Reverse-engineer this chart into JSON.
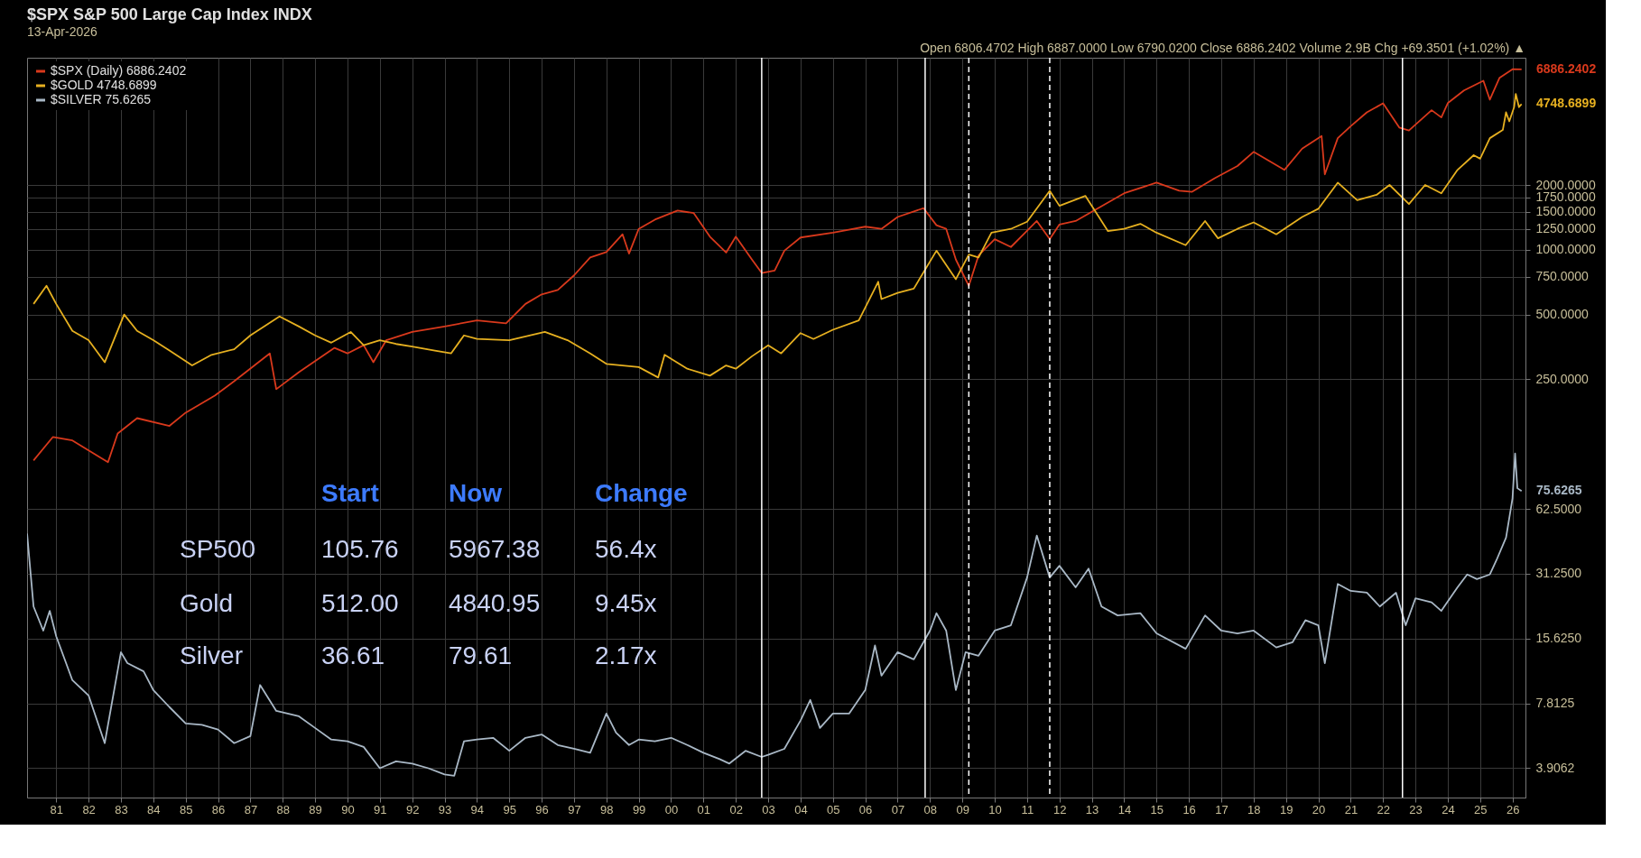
{
  "chart_data": {
    "type": "line",
    "title": "$SPX S&P 500 Large Cap Index INDX",
    "subtitle": "13-Apr-2026",
    "log": "y",
    "grid": true,
    "legend": "top left",
    "xlim": [
      1980.1,
      2026.4
    ],
    "xticks": [
      {
        "value": 1981,
        "label": "81"
      },
      {
        "value": 1982,
        "label": "82"
      },
      {
        "value": 1983,
        "label": "83"
      },
      {
        "value": 1984,
        "label": "84"
      },
      {
        "value": 1985,
        "label": "85"
      },
      {
        "value": 1986,
        "label": "86"
      },
      {
        "value": 1987,
        "label": "87"
      },
      {
        "value": 1988,
        "label": "88"
      },
      {
        "value": 1989,
        "label": "89"
      },
      {
        "value": 1990,
        "label": "90"
      },
      {
        "value": 1991,
        "label": "91"
      },
      {
        "value": 1992,
        "label": "92"
      },
      {
        "value": 1993,
        "label": "93"
      },
      {
        "value": 1994,
        "label": "94"
      },
      {
        "value": 1995,
        "label": "95"
      },
      {
        "value": 1996,
        "label": "96"
      },
      {
        "value": 1997,
        "label": "97"
      },
      {
        "value": 1998,
        "label": "98"
      },
      {
        "value": 1999,
        "label": "99"
      },
      {
        "value": 2000,
        "label": "00"
      },
      {
        "value": 2001,
        "label": "01"
      },
      {
        "value": 2002,
        "label": "02"
      },
      {
        "value": 2003,
        "label": "03"
      },
      {
        "value": 2004,
        "label": "04"
      },
      {
        "value": 2005,
        "label": "05"
      },
      {
        "value": 2006,
        "label": "06"
      },
      {
        "value": 2007,
        "label": "07"
      },
      {
        "value": 2008,
        "label": "08"
      },
      {
        "value": 2009,
        "label": "09"
      },
      {
        "value": 2010,
        "label": "10"
      },
      {
        "value": 2011,
        "label": "11"
      },
      {
        "value": 2012,
        "label": "12"
      },
      {
        "value": 2013,
        "label": "13"
      },
      {
        "value": 2014,
        "label": "14"
      },
      {
        "value": 2015,
        "label": "15"
      },
      {
        "value": 2016,
        "label": "16"
      },
      {
        "value": 2017,
        "label": "17"
      },
      {
        "value": 2018,
        "label": "18"
      },
      {
        "value": 2019,
        "label": "19"
      },
      {
        "value": 2020,
        "label": "20"
      },
      {
        "value": 2021,
        "label": "21"
      },
      {
        "value": 2022,
        "label": "22"
      },
      {
        "value": 2023,
        "label": "23"
      },
      {
        "value": 2024,
        "label": "24"
      },
      {
        "value": 2025,
        "label": "25"
      },
      {
        "value": 2026,
        "label": "26"
      }
    ],
    "ylim": [
      2.85,
      7800
    ],
    "yticks": [
      {
        "value": 3.9062,
        "label": "3.9062"
      },
      {
        "value": 7.8125,
        "label": "7.8125"
      },
      {
        "value": 15.625,
        "label": "15.6250"
      },
      {
        "value": 31.25,
        "label": "31.2500"
      },
      {
        "value": 62.5,
        "label": "62.5000"
      },
      {
        "value": 250,
        "label": "250.0000"
      },
      {
        "value": 500,
        "label": "500.0000"
      },
      {
        "value": 750,
        "label": "750.0000"
      },
      {
        "value": 1000,
        "label": "1000.0000"
      },
      {
        "value": 1250,
        "label": "1250.0000"
      },
      {
        "value": 1500,
        "label": "1500.0000"
      },
      {
        "value": 1750,
        "label": "1750.0000"
      },
      {
        "value": 2000,
        "label": "2000.0000"
      }
    ],
    "series": [
      {
        "name": "$SPX (Daily) 6886.2402",
        "color": "#d9391c",
        "x": [
          1980.3,
          1980.9,
          1981.5,
          1982.6,
          1982.9,
          1983.5,
          1984.5,
          1985.0,
          1985.9,
          1986.5,
          1987.6,
          1987.8,
          1988.5,
          1989.6,
          1990.0,
          1990.5,
          1990.8,
          1991.2,
          1992.0,
          1993.0,
          1994.0,
          1994.9,
          1995.5,
          1996.0,
          1996.5,
          1997.0,
          1997.5,
          1998.0,
          1998.5,
          1998.7,
          1999.0,
          1999.5,
          2000.2,
          2000.7,
          2001.2,
          2001.7,
          2002.0,
          2002.5,
          2002.8,
          2003.2,
          2003.5,
          2004.0,
          2005.0,
          2006.0,
          2006.5,
          2007.0,
          2007.8,
          2008.2,
          2008.5,
          2008.8,
          2009.2,
          2009.5,
          2010.0,
          2010.5,
          2011.3,
          2011.7,
          2012.0,
          2012.5,
          2013.0,
          2014.0,
          2015.0,
          2015.7,
          2016.1,
          2016.8,
          2017.5,
          2018.0,
          2018.95,
          2019.5,
          2020.1,
          2020.2,
          2020.6,
          2021.0,
          2021.5,
          2022.0,
          2022.5,
          2022.8,
          2023.5,
          2023.8,
          2024.0,
          2024.5,
          2025.1,
          2025.3,
          2025.6,
          2026.0,
          2026.28
        ],
        "values": [
          105,
          135,
          130,
          103,
          140,
          165,
          152,
          175,
          210,
          245,
          330,
          225,
          270,
          350,
          330,
          360,
          300,
          380,
          415,
          440,
          470,
          455,
          560,
          620,
          650,
          760,
          920,
          975,
          1180,
          960,
          1250,
          1380,
          1520,
          1480,
          1150,
          970,
          1150,
          900,
          780,
          800,
          990,
          1140,
          1200,
          1280,
          1250,
          1420,
          1560,
          1300,
          1250,
          900,
          680,
          940,
          1120,
          1030,
          1360,
          1120,
          1310,
          1360,
          1500,
          1830,
          2050,
          1880,
          1860,
          2150,
          2450,
          2850,
          2350,
          2950,
          3380,
          2240,
          3300,
          3750,
          4350,
          4790,
          3700,
          3580,
          4450,
          4120,
          4800,
          5500,
          6100,
          4980,
          6300,
          6900,
          6886.24
        ]
      },
      {
        "name": "$GOLD 4748.6899",
        "color": "#e6b020",
        "x": [
          1980.3,
          1980.7,
          1981.0,
          1981.5,
          1982.0,
          1982.5,
          1983.1,
          1983.5,
          1984.0,
          1984.5,
          1985.2,
          1985.8,
          1986.5,
          1987.0,
          1987.9,
          1988.5,
          1989.0,
          1989.5,
          1990.1,
          1990.5,
          1991.0,
          1991.5,
          1992.0,
          1992.7,
          1993.2,
          1993.6,
          1994.0,
          1995.0,
          1996.1,
          1996.8,
          1997.5,
          1998.0,
          1998.5,
          1999.0,
          1999.6,
          1999.8,
          2000.5,
          2001.2,
          2001.7,
          2002.0,
          2002.5,
          2003.0,
          2003.4,
          2004.0,
          2004.4,
          2005.0,
          2005.8,
          2006.4,
          2006.5,
          2007.0,
          2007.5,
          2008.2,
          2008.8,
          2009.2,
          2009.5,
          2009.9,
          2010.5,
          2011.0,
          2011.7,
          2012.0,
          2012.8,
          2013.5,
          2014.0,
          2014.5,
          2015.0,
          2015.9,
          2016.5,
          2016.9,
          2017.5,
          2018.0,
          2018.7,
          2019.5,
          2020.0,
          2020.6,
          2021.2,
          2021.8,
          2022.2,
          2022.8,
          2023.3,
          2023.8,
          2024.3,
          2024.8,
          2025.0,
          2025.3,
          2025.7,
          2025.8,
          2025.9,
          2026.05,
          2026.1,
          2026.2,
          2026.28
        ],
        "values": [
          560,
          680,
          560,
          420,
          380,
          300,
          500,
          420,
          380,
          340,
          290,
          325,
          345,
          400,
          490,
          440,
          400,
          370,
          415,
          360,
          380,
          365,
          355,
          340,
          330,
          400,
          385,
          380,
          415,
          380,
          330,
          295,
          290,
          285,
          255,
          325,
          280,
          260,
          290,
          280,
          320,
          360,
          330,
          410,
          385,
          425,
          470,
          710,
          590,
          630,
          660,
          990,
          730,
          950,
          920,
          1200,
          1250,
          1350,
          1880,
          1600,
          1780,
          1220,
          1250,
          1320,
          1200,
          1050,
          1360,
          1130,
          1250,
          1340,
          1180,
          1420,
          1550,
          2050,
          1700,
          1800,
          2000,
          1630,
          2000,
          1830,
          2350,
          2750,
          2650,
          3300,
          3600,
          4350,
          3950,
          4600,
          5300,
          4600,
          4748.69
        ]
      },
      {
        "name": "$SILVER 75.6265",
        "color": "#a9b8c6",
        "x": [
          1980.1,
          1980.3,
          1980.6,
          1980.8,
          1981.0,
          1981.5,
          1982.0,
          1982.5,
          1983.0,
          1983.2,
          1983.7,
          1984.0,
          1984.5,
          1985.0,
          1985.5,
          1986.0,
          1986.5,
          1987.0,
          1987.3,
          1987.8,
          1988.5,
          1989.0,
          1989.5,
          1990.0,
          1990.5,
          1991.0,
          1991.5,
          1992.0,
          1992.5,
          1993.0,
          1993.3,
          1993.6,
          1994.0,
          1994.5,
          1995.0,
          1995.5,
          1996.0,
          1996.5,
          1997.0,
          1997.5,
          1998.0,
          1998.3,
          1998.7,
          1999.0,
          1999.5,
          2000.0,
          2000.5,
          2001.0,
          2001.5,
          2001.8,
          2002.3,
          2002.8,
          2003.0,
          2003.5,
          2004.0,
          2004.3,
          2004.6,
          2005.0,
          2005.5,
          2006.0,
          2006.3,
          2006.5,
          2007.0,
          2007.5,
          2008.0,
          2008.2,
          2008.5,
          2008.8,
          2009.1,
          2009.5,
          2010.0,
          2010.5,
          2011.0,
          2011.3,
          2011.7,
          2012.0,
          2012.5,
          2012.9,
          2013.3,
          2013.8,
          2014.5,
          2015.0,
          2015.9,
          2016.5,
          2017.0,
          2017.5,
          2018.0,
          2018.7,
          2019.2,
          2019.6,
          2020.0,
          2020.2,
          2020.6,
          2021.0,
          2021.5,
          2021.9,
          2022.4,
          2022.7,
          2023.0,
          2023.5,
          2023.8,
          2024.3,
          2024.6,
          2024.9,
          2025.3,
          2025.5,
          2025.8,
          2026.0,
          2026.08,
          2026.15,
          2026.28
        ],
        "values": [
          48,
          22,
          17,
          21,
          16,
          10,
          8.5,
          5.1,
          13.5,
          12,
          11,
          9,
          7.5,
          6.3,
          6.2,
          5.9,
          5.1,
          5.5,
          9.5,
          7.2,
          6.8,
          6.0,
          5.3,
          5.2,
          4.9,
          3.9,
          4.2,
          4.1,
          3.9,
          3.65,
          3.6,
          5.2,
          5.3,
          5.4,
          4.7,
          5.4,
          5.6,
          5.0,
          4.8,
          4.6,
          7.0,
          5.7,
          5.0,
          5.3,
          5.2,
          5.4,
          5.0,
          4.6,
          4.3,
          4.1,
          4.7,
          4.4,
          4.5,
          4.8,
          6.5,
          8.1,
          6.0,
          7.0,
          7.0,
          9.0,
          14.5,
          10.5,
          13.5,
          12.5,
          17,
          20.5,
          17,
          9.0,
          13.5,
          13,
          17,
          18,
          30,
          47,
          30,
          34,
          27,
          33,
          22,
          20,
          20.5,
          16.5,
          14,
          20,
          17,
          16.5,
          17,
          14.2,
          15,
          19,
          18,
          12,
          28,
          26,
          25.5,
          22,
          25.5,
          18,
          24,
          23,
          21,
          27,
          31,
          29.5,
          31,
          36,
          46,
          70,
          113,
          78,
          75.63
        ]
      }
    ],
    "ref_lines": [
      {
        "axis": "x",
        "value": 2002.8,
        "color": "#ffffff",
        "line_style": "solid"
      },
      {
        "axis": "x",
        "value": 2007.85,
        "color": "#ffffff",
        "line_style": "solid"
      },
      {
        "axis": "x",
        "value": 2009.2,
        "color": "#ffffff",
        "line_style": "dashed"
      },
      {
        "axis": "x",
        "value": 2011.7,
        "color": "#ffffff",
        "line_style": "dashed"
      },
      {
        "axis": "x",
        "value": 2022.6,
        "color": "#ffffff",
        "line_style": "solid"
      }
    ],
    "annotations": [
      "Open 6806.4702  High 6887.0000  Low 6790.0200  Close 6886.2402  Volume 2.9B  Chg +69.3501 (+1.02%) ▲",
      "6886.2402",
      "4748.6899",
      "75.6265",
      "Start",
      "Now",
      "Change",
      "SP500",
      "105.76",
      "5967.38",
      "56.4x",
      "Gold",
      "512.00",
      "4840.95",
      "9.45x",
      "Silver",
      "36.61",
      "79.61",
      "2.17x"
    ]
  }
}
